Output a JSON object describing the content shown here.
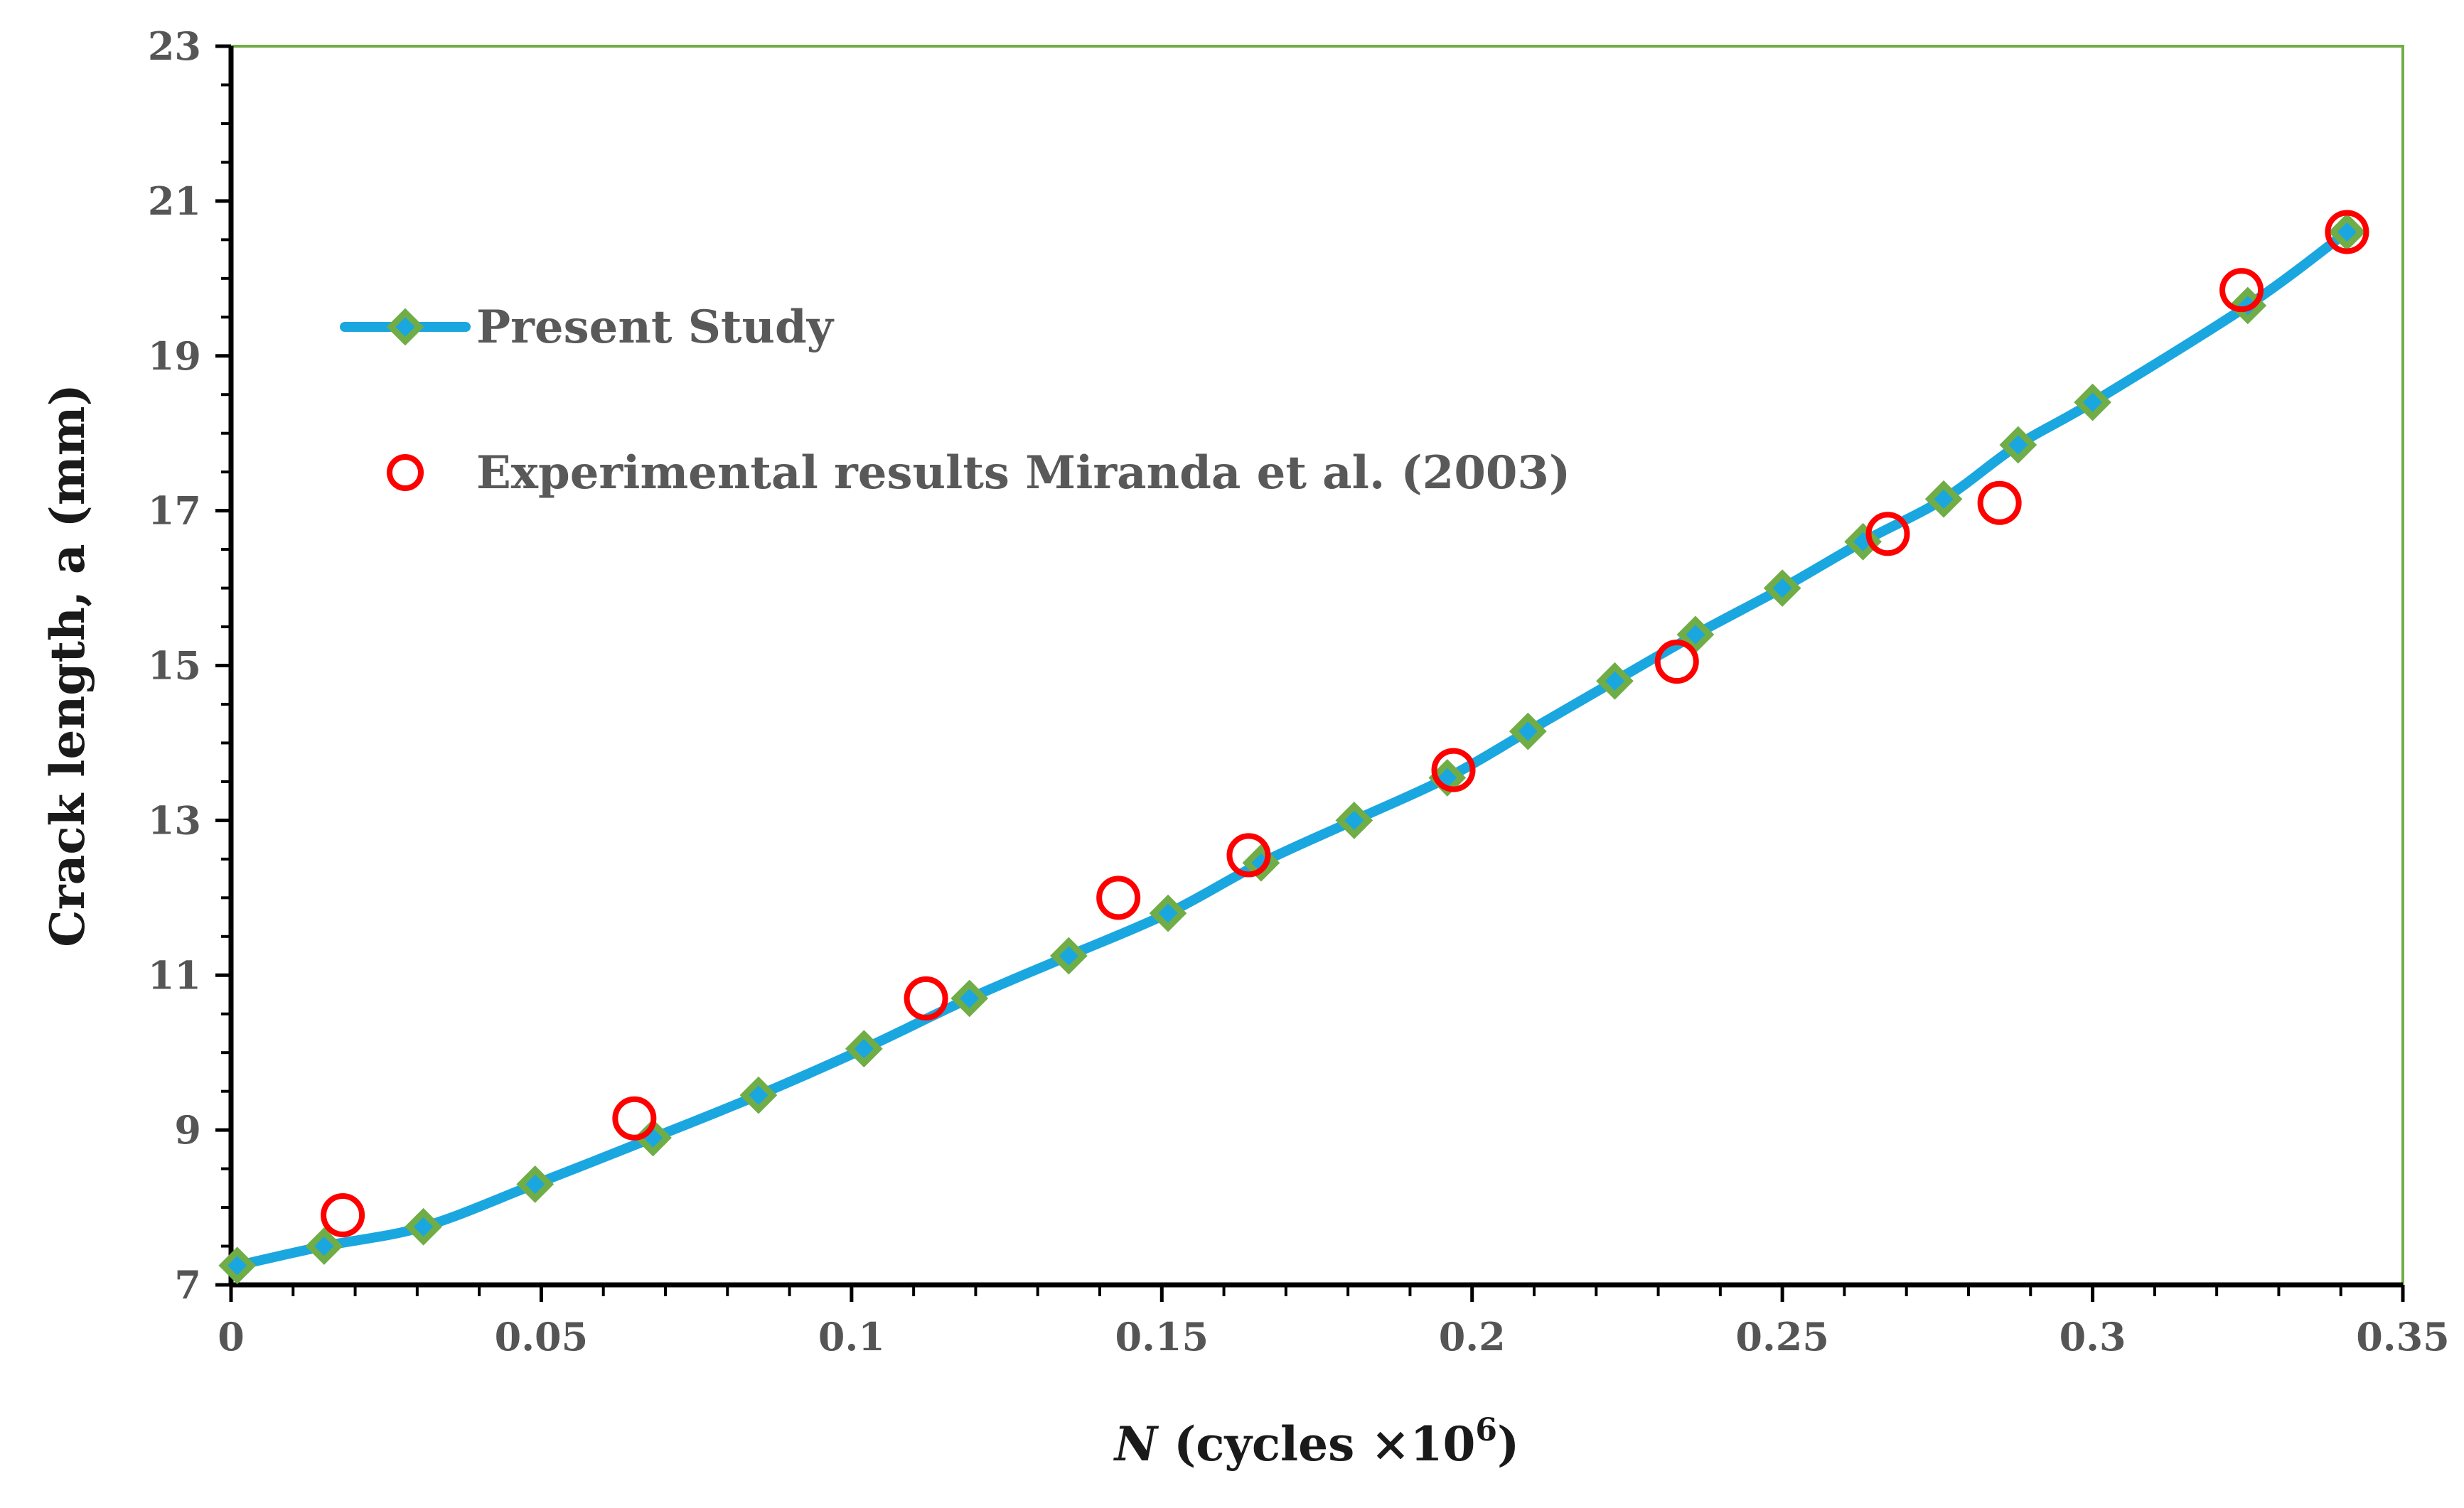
{
  "chart_data": {
    "type": "line",
    "xlabel": "N (cycles ×10",
    "xlabel_italic": "N",
    "xlabel_rest": " (cycles ×10",
    "xlabel_sup": "6",
    "xlabel_end": ")",
    "ylabel": "Crack length, a (mm)",
    "xlim": [
      0,
      0.35
    ],
    "ylim": [
      7,
      23
    ],
    "x_ticks": [
      "0",
      "0.05",
      "0.1",
      "0.15",
      "0.2",
      "0.25",
      "0.3",
      "0.35"
    ],
    "y_ticks": [
      "7",
      "9",
      "11",
      "13",
      "15",
      "17",
      "19",
      "21",
      "23"
    ],
    "grid": false,
    "legend_position": "upper-left",
    "series": [
      {
        "name": "Present Study",
        "marker": "diamond",
        "line_color": "#1aa7e0",
        "marker_color": "#70ad47",
        "x": [
          0.001,
          0.015,
          0.031,
          0.049,
          0.068,
          0.085,
          0.102,
          0.119,
          0.135,
          0.151,
          0.166,
          0.181,
          0.196,
          0.209,
          0.223,
          0.236,
          0.25,
          0.263,
          0.276,
          0.288,
          0.3,
          0.325,
          0.341
        ],
        "y": [
          7.25,
          7.5,
          7.75,
          8.3,
          8.9,
          9.45,
          10.05,
          10.7,
          11.25,
          11.8,
          12.45,
          13.0,
          13.55,
          14.15,
          14.8,
          15.4,
          16.0,
          16.6,
          17.15,
          17.85,
          18.4,
          19.65,
          20.6
        ]
      },
      {
        "name": "Experimental results Miranda et al. (2003)",
        "marker": "circle",
        "marker_color": "#ff0000",
        "x": [
          0.018,
          0.065,
          0.112,
          0.143,
          0.164,
          0.197,
          0.233,
          0.267,
          0.285,
          0.324,
          0.341
        ],
        "y": [
          7.9,
          9.15,
          10.7,
          12.0,
          12.55,
          13.65,
          15.05,
          16.7,
          17.1,
          19.85,
          20.6
        ]
      }
    ]
  }
}
